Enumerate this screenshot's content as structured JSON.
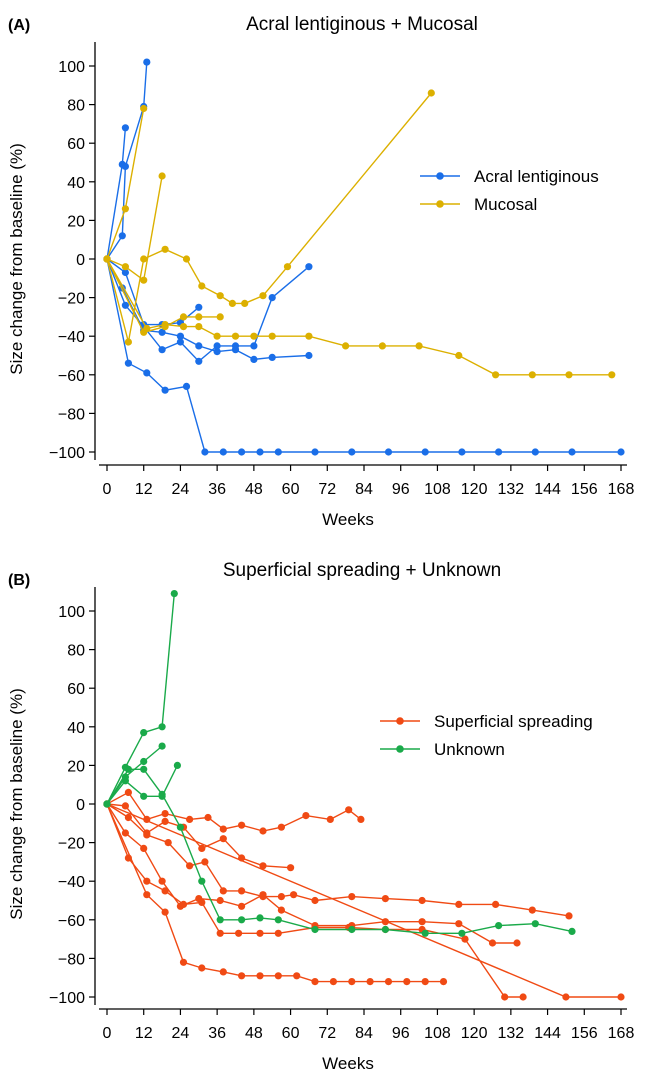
{
  "chart_data": [
    {
      "type": "line",
      "panel_label": "(A)",
      "title": "Acral lentiginous + Mucosal",
      "xlabel": "Weeks",
      "ylabel": "Size change from baseline (%)",
      "xlim": [
        0,
        168
      ],
      "ylim": [
        -100,
        100
      ],
      "xticks": [
        0,
        12,
        24,
        36,
        48,
        60,
        72,
        84,
        96,
        108,
        120,
        132,
        144,
        156,
        168
      ],
      "yticks": [
        100,
        80,
        60,
        40,
        20,
        0,
        -20,
        -40,
        -60,
        -80,
        -100
      ],
      "legend_position": "center-right",
      "grid": false,
      "series": [
        {
          "name": "Acral lentiginous",
          "color": "#1a6ee8",
          "lines": [
            [
              [
                0,
                0
              ],
              [
                5,
                12
              ],
              [
                6,
                48
              ],
              [
                12,
                79
              ],
              [
                13,
                102
              ]
            ],
            [
              [
                0,
                0
              ],
              [
                5,
                49
              ],
              [
                6,
                68
              ]
            ],
            [
              [
                0,
                0
              ],
              [
                6,
                -7
              ],
              [
                12,
                -34
              ],
              [
                18,
                -34
              ],
              [
                24,
                -33
              ],
              [
                30,
                -25
              ]
            ],
            [
              [
                0,
                0
              ],
              [
                5,
                -15
              ],
              [
                12,
                -37
              ],
              [
                18,
                -38
              ],
              [
                24,
                -40
              ],
              [
                30,
                -45
              ],
              [
                36,
                -48
              ],
              [
                42,
                -47
              ],
              [
                48,
                -52
              ],
              [
                54,
                -51
              ],
              [
                66,
                -50
              ]
            ],
            [
              [
                0,
                0
              ],
              [
                6,
                -24
              ],
              [
                12,
                -35
              ],
              [
                18,
                -47
              ],
              [
                24,
                -43
              ],
              [
                30,
                -53
              ],
              [
                36,
                -45
              ],
              [
                42,
                -45
              ],
              [
                48,
                -45
              ],
              [
                54,
                -20
              ],
              [
                66,
                -4
              ]
            ],
            [
              [
                0,
                0
              ],
              [
                7,
                -54
              ],
              [
                13,
                -59
              ],
              [
                19,
                -68
              ],
              [
                26,
                -66
              ],
              [
                32,
                -100
              ],
              [
                38,
                -100
              ],
              [
                44,
                -100
              ],
              [
                50,
                -100
              ],
              [
                56,
                -100
              ],
              [
                68,
                -100
              ],
              [
                80,
                -100
              ],
              [
                92,
                -100
              ],
              [
                104,
                -100
              ],
              [
                116,
                -100
              ],
              [
                128,
                -100
              ],
              [
                140,
                -100
              ],
              [
                152,
                -100
              ],
              [
                168,
                -100
              ]
            ]
          ]
        },
        {
          "name": "Mucosal",
          "color": "#dcb000",
          "lines": [
            [
              [
                0,
                0
              ],
              [
                6,
                26
              ],
              [
                12,
                78
              ]
            ],
            [
              [
                0,
                0
              ],
              [
                6,
                -4
              ],
              [
                12,
                -11
              ],
              [
                18,
                43
              ]
            ],
            [
              [
                0,
                0
              ],
              [
                7,
                -43
              ],
              [
                12,
                0
              ],
              [
                19,
                5
              ],
              [
                26,
                0
              ],
              [
                31,
                -14
              ],
              [
                37,
                -19
              ],
              [
                41,
                -23
              ],
              [
                45,
                -23
              ],
              [
                51,
                -19
              ],
              [
                59,
                -4
              ],
              [
                106,
                86
              ]
            ],
            [
              [
                0,
                0
              ],
              [
                12,
                -38
              ],
              [
                19,
                -35
              ],
              [
                25,
                -30
              ],
              [
                30,
                -30
              ],
              [
                37,
                -30
              ]
            ],
            [
              [
                0,
                0
              ],
              [
                13,
                -36
              ],
              [
                19,
                -34
              ],
              [
                25,
                -35
              ],
              [
                30,
                -35
              ],
              [
                36,
                -40
              ],
              [
                42,
                -40
              ],
              [
                48,
                -40
              ],
              [
                54,
                -40
              ],
              [
                66,
                -40
              ],
              [
                78,
                -45
              ],
              [
                90,
                -45
              ],
              [
                102,
                -45
              ],
              [
                115,
                -50
              ],
              [
                127,
                -60
              ],
              [
                139,
                -60
              ],
              [
                151,
                -60
              ],
              [
                165,
                -60
              ]
            ]
          ]
        }
      ]
    },
    {
      "type": "line",
      "panel_label": "(B)",
      "title": "Superficial spreading + Unknown",
      "xlabel": "Weeks",
      "ylabel": "Size change from baseline (%)",
      "xlim": [
        0,
        168
      ],
      "ylim": [
        -100,
        100
      ],
      "xticks": [
        0,
        12,
        24,
        36,
        48,
        60,
        72,
        84,
        96,
        108,
        120,
        132,
        144,
        156,
        168
      ],
      "yticks": [
        100,
        80,
        60,
        40,
        20,
        0,
        -20,
        -40,
        -60,
        -80,
        -100
      ],
      "legend_position": "center-right",
      "grid": false,
      "series": [
        {
          "name": "Superficial spreading",
          "color": "#f04a14",
          "lines": [
            [
              [
                0,
                0
              ],
              [
                7,
                6
              ],
              [
                13,
                -8
              ],
              [
                19,
                -5
              ],
              [
                27,
                -8
              ],
              [
                33,
                -7
              ],
              [
                38,
                -13
              ],
              [
                44,
                -11
              ],
              [
                51,
                -14
              ],
              [
                57,
                -12
              ],
              [
                65,
                -6
              ],
              [
                73,
                -8
              ],
              [
                79,
                -3
              ],
              [
                83,
                -8
              ]
            ],
            [
              [
                0,
                0
              ],
              [
                6,
                -1
              ],
              [
                13,
                -15
              ],
              [
                19,
                -9
              ],
              [
                25,
                -12
              ],
              [
                31,
                -23
              ],
              [
                38,
                -18
              ],
              [
                44,
                -28
              ],
              [
                51,
                -32
              ],
              [
                60,
                -33
              ]
            ],
            [
              [
                0,
                0
              ],
              [
                7,
                -7
              ],
              [
                13,
                -16
              ],
              [
                20,
                -20
              ],
              [
                27,
                -32
              ],
              [
                32,
                -30
              ],
              [
                38,
                -45
              ],
              [
                44,
                -45
              ],
              [
                51,
                -48
              ],
              [
                57,
                -48
              ],
              [
                61,
                -47
              ],
              [
                68,
                -50
              ],
              [
                80,
                -48
              ],
              [
                91,
                -49
              ],
              [
                103,
                -50
              ],
              [
                115,
                -52
              ],
              [
                127,
                -52
              ],
              [
                139,
                -55
              ],
              [
                151,
                -58
              ]
            ],
            [
              [
                0,
                0
              ],
              [
                6,
                -15
              ],
              [
                12,
                -23
              ],
              [
                18,
                -40
              ],
              [
                24,
                -53
              ],
              [
                30,
                -49
              ],
              [
                37,
                -50
              ],
              [
                44,
                -53
              ],
              [
                51,
                -47
              ],
              [
                57,
                -55
              ],
              [
                68,
                -63
              ],
              [
                80,
                -63
              ],
              [
                91,
                -61
              ],
              [
                103,
                -61
              ],
              [
                115,
                -62
              ],
              [
                126,
                -72
              ],
              [
                134,
                -72
              ]
            ],
            [
              [
                0,
                0
              ],
              [
                7,
                -28
              ],
              [
                13,
                -40
              ],
              [
                19,
                -45
              ],
              [
                25,
                -52
              ],
              [
                31,
                -51
              ],
              [
                37,
                -67
              ],
              [
                43,
                -67
              ],
              [
                50,
                -67
              ],
              [
                56,
                -67
              ],
              [
                68,
                -64
              ],
              [
                79,
                -64
              ],
              [
                91,
                -65
              ],
              [
                103,
                -65
              ],
              [
                117,
                -70
              ],
              [
                130,
                -100
              ],
              [
                136,
                -100
              ]
            ],
            [
              [
                0,
                0
              ],
              [
                13,
                -47
              ],
              [
                19,
                -56
              ],
              [
                25,
                -82
              ],
              [
                31,
                -85
              ],
              [
                38,
                -87
              ],
              [
                44,
                -89
              ],
              [
                50,
                -89
              ],
              [
                56,
                -89
              ],
              [
                62,
                -89
              ],
              [
                68,
                -92
              ],
              [
                74,
                -92
              ],
              [
                80,
                -92
              ],
              [
                86,
                -92
              ],
              [
                92,
                -92
              ],
              [
                98,
                -92
              ],
              [
                104,
                -92
              ],
              [
                110,
                -92
              ]
            ],
            [
              [
                0,
                0
              ],
              [
                150,
                -100
              ],
              [
                168,
                -100
              ]
            ]
          ]
        },
        {
          "name": "Unknown",
          "color": "#1aaa4a",
          "lines": [
            [
              [
                0,
                0
              ],
              [
                6,
                19
              ],
              [
                12,
                37
              ],
              [
                18,
                40
              ],
              [
                22,
                109
              ]
            ],
            [
              [
                0,
                0
              ],
              [
                6,
                14
              ],
              [
                12,
                22
              ],
              [
                18,
                30
              ]
            ],
            [
              [
                0,
                0
              ],
              [
                6,
                12
              ],
              [
                12,
                4
              ],
              [
                18,
                4
              ],
              [
                23,
                20
              ]
            ],
            [
              [
                0,
                0
              ],
              [
                7,
                18
              ],
              [
                12,
                18
              ],
              [
                18,
                5
              ],
              [
                24,
                -12
              ],
              [
                31,
                -40
              ],
              [
                37,
                -60
              ],
              [
                44,
                -60
              ],
              [
                50,
                -59
              ],
              [
                56,
                -60
              ],
              [
                68,
                -65
              ],
              [
                80,
                -65
              ],
              [
                91,
                -65
              ],
              [
                104,
                -67
              ],
              [
                116,
                -67
              ],
              [
                128,
                -63
              ],
              [
                140,
                -62
              ],
              [
                152,
                -66
              ]
            ]
          ]
        }
      ]
    }
  ]
}
